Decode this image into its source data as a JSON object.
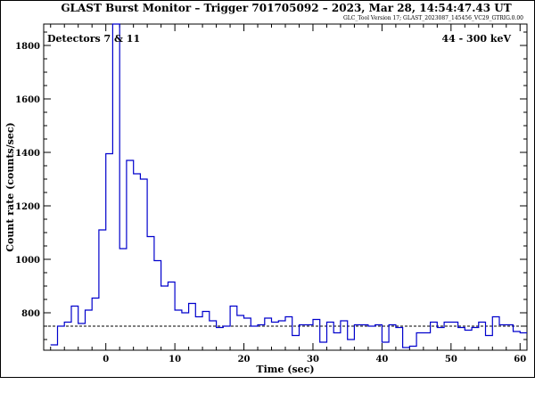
{
  "chart_data": {
    "type": "line",
    "title": "GLAST Burst Monitor  –  Trigger 701705092  –  2023, Mar 28, 14:54:47.43 UT",
    "subtitle": "GLC_Tool Version 17; GLAST_2023087_145456_VC29_GTRIG.0.00",
    "xlabel": "Time (sec)",
    "ylabel": "Count rate (counts/sec)",
    "xlim": [
      -9,
      61
    ],
    "ylim": [
      660,
      1880
    ],
    "x_ticks": [
      0,
      10,
      20,
      30,
      40,
      50,
      60
    ],
    "y_ticks": [
      800,
      1000,
      1200,
      1400,
      1600,
      1800
    ],
    "x_tick_labels": [
      "0",
      "10",
      "20",
      "30",
      "40",
      "50",
      "60"
    ],
    "y_tick_labels": [
      "800",
      "1000",
      "1200",
      "1400",
      "1600",
      "1800"
    ],
    "grid": false,
    "annotations": {
      "detectors": "Detectors 7 & 11",
      "energy": "44 - 300 keV"
    },
    "background_level": 750,
    "series": [
      {
        "color": "#0000cc",
        "step": true,
        "x": [
          -8,
          -7,
          -6,
          -5,
          -4,
          -3,
          -2,
          -1,
          0,
          1,
          2,
          3,
          4,
          5,
          6,
          7,
          8,
          9,
          10,
          11,
          12,
          13,
          14,
          15,
          16,
          17,
          18,
          19,
          20,
          21,
          22,
          23,
          24,
          25,
          26,
          27,
          28,
          29,
          30,
          31,
          32,
          33,
          34,
          35,
          36,
          37,
          38,
          39,
          40,
          41,
          42,
          43,
          44,
          45,
          46,
          47,
          48,
          49,
          50,
          51,
          52,
          53,
          54,
          55,
          56,
          57,
          58,
          59,
          60,
          61
        ],
        "values": [
          680,
          750,
          765,
          825,
          760,
          810,
          855,
          1110,
          1395,
          1880,
          1040,
          1370,
          1320,
          1300,
          1085,
          995,
          900,
          915,
          810,
          800,
          835,
          785,
          805,
          770,
          745,
          750,
          825,
          790,
          780,
          750,
          755,
          780,
          765,
          770,
          785,
          715,
          755,
          755,
          775,
          690,
          765,
          725,
          770,
          700,
          755,
          755,
          750,
          755,
          690,
          755,
          745,
          670,
          675,
          725,
          725,
          765,
          745,
          765,
          765,
          745,
          735,
          745,
          765,
          715,
          785,
          755,
          755,
          730,
          725,
          725
        ]
      }
    ]
  }
}
